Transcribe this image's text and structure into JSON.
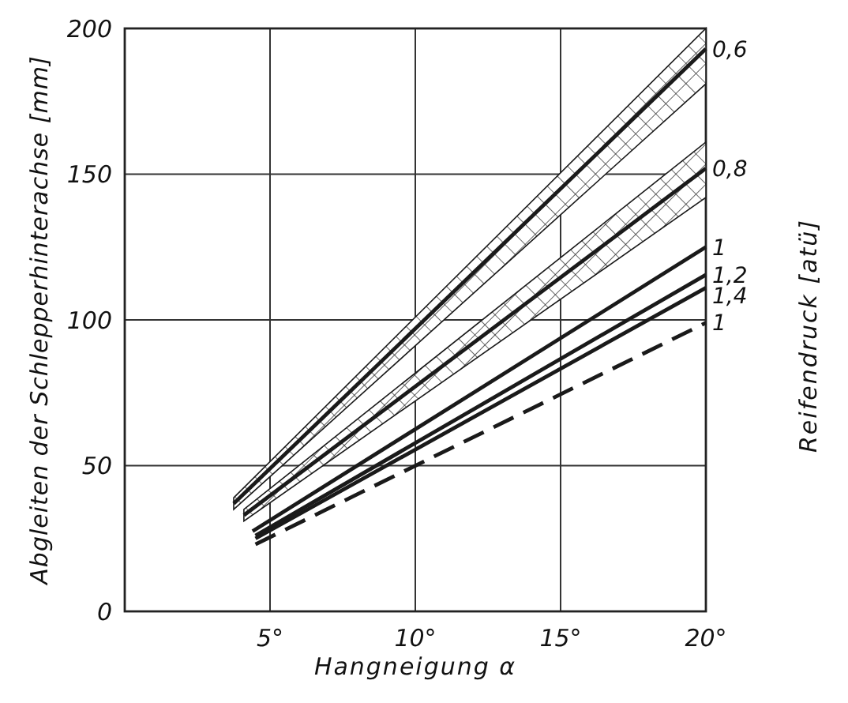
{
  "chart_data": {
    "type": "line",
    "xlabel": "Hangneigung α",
    "ylabel": "Abgleiten der Schlepperhinterachse [mm]",
    "y2label": "Reifendruck [atü]",
    "xlim": [
      0,
      20
    ],
    "xticks": [
      {
        "value": 5,
        "label": "5°"
      },
      {
        "value": 10,
        "label": "10°"
      },
      {
        "value": 15,
        "label": "15°"
      },
      {
        "value": 20,
        "label": "20°"
      }
    ],
    "ylim": [
      0,
      200
    ],
    "yticks": [
      0,
      50,
      100,
      150,
      200
    ],
    "grid": true,
    "marker": "none",
    "series": [
      {
        "name": "0,6",
        "color": "#1a1a1a",
        "x": [
          3.75,
          20
        ],
        "values": [
          37,
          193
        ],
        "lower": [
          35,
          181
        ],
        "upper": [
          39,
          200
        ],
        "line_style": "solid"
      },
      {
        "name": "0,8",
        "color": "#1a1a1a",
        "x": [
          4.1,
          20
        ],
        "values": [
          33,
          152
        ],
        "lower": [
          31,
          142
        ],
        "upper": [
          35,
          161
        ],
        "line_style": "solid"
      },
      {
        "name": "1",
        "color": "#1a1a1a",
        "x": [
          4.4,
          20
        ],
        "values": [
          27.5,
          125
        ],
        "line_style": "solid"
      },
      {
        "name": "1,2",
        "color": "#1a1a1a",
        "x": [
          4.5,
          20
        ],
        "values": [
          26,
          115.5
        ],
        "line_style": "solid"
      },
      {
        "name": "1,4",
        "color": "#1a1a1a",
        "x": [
          4.5,
          20
        ],
        "values": [
          25,
          111
        ],
        "line_style": "solid"
      },
      {
        "name": "1",
        "color": "#1a1a1a",
        "x": [
          4.5,
          20
        ],
        "values": [
          23,
          99
        ],
        "line_style": "dashed"
      }
    ]
  }
}
